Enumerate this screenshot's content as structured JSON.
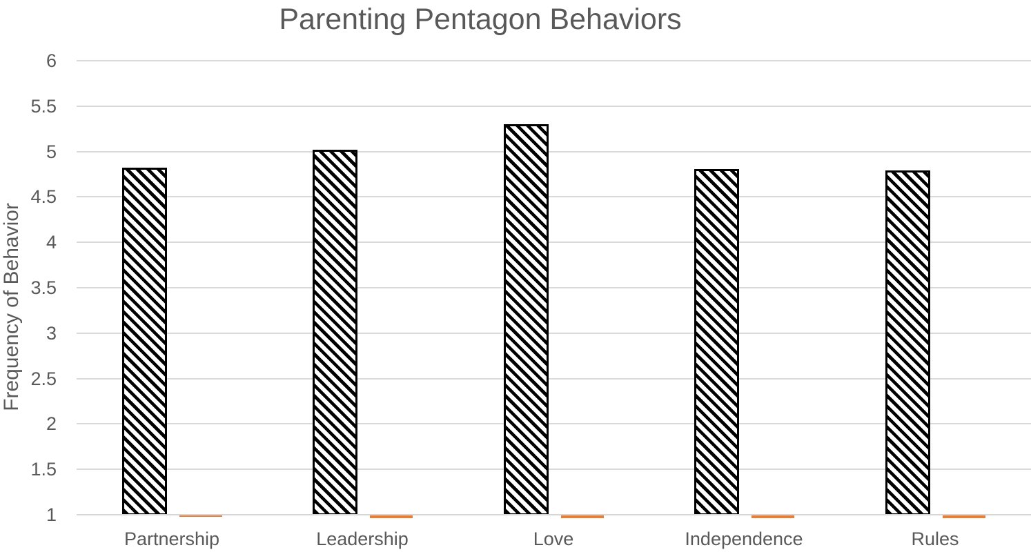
{
  "chart_data": {
    "type": "bar",
    "title": "Parenting Pentagon Behaviors",
    "xlabel": "",
    "ylabel": "Frequency of Behavior",
    "categories": [
      "Partnership",
      "Leadership",
      "Love",
      "Independence",
      "Rules"
    ],
    "series": [
      {
        "name": "series-1-hatched",
        "style": "white fill with black diagonal hatch, black border",
        "values": [
          4.82,
          5.02,
          5.3,
          4.81,
          4.79
        ]
      },
      {
        "name": "series-2-orange",
        "style": "solid orange, rendered as thin sliver at axis minimum",
        "values": [
          0.99,
          0.98,
          0.98,
          0.98,
          0.98
        ]
      }
    ],
    "ylim": [
      1,
      6
    ],
    "ytick_step": 0.5,
    "yticks": [
      "1",
      "1.5",
      "2",
      "2.5",
      "3",
      "3.5",
      "4",
      "4.5",
      "5",
      "5.5",
      "6"
    ],
    "grid": true,
    "legend": false,
    "colors": {
      "hatch": "#000000",
      "orange": "#ed7d31",
      "gridline": "#d9d9d9",
      "text": "#595959",
      "background": "#ffffff"
    }
  }
}
